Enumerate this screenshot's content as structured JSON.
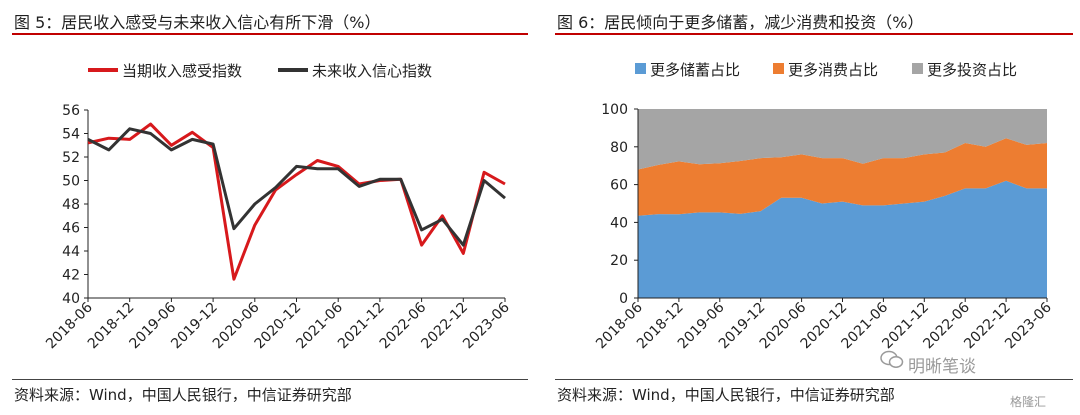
{
  "left_panel": {
    "title": "图 5：居民收入感受与未来收入信心有所下滑（%）",
    "source": "资料来源：Wind，中国人民银行，中信证券研究部"
  },
  "right_panel": {
    "title": "图 6：居民倾向于更多储蓄，减少消费和投资（%）",
    "source": "资料来源：Wind，中国人民银行，中信证券研究部"
  },
  "watermark": {
    "text": "明晰笔谈",
    "corner": "格隆汇"
  },
  "colors": {
    "red": "#d7191c",
    "dark": "#333333",
    "blue": "#5b9bd5",
    "orange": "#ed7d31",
    "gray": "#a5a5a5",
    "accent_rule": "#c00000"
  },
  "chart_data": [
    {
      "type": "line",
      "title": "",
      "x": [
        "2018-06",
        "2018-09",
        "2018-12",
        "2019-03",
        "2019-06",
        "2019-09",
        "2019-12",
        "2020-03",
        "2020-06",
        "2020-09",
        "2020-12",
        "2021-03",
        "2021-06",
        "2021-09",
        "2021-12",
        "2022-03",
        "2022-06",
        "2022-09",
        "2022-12",
        "2023-03",
        "2023-06"
      ],
      "tick_labels": [
        "2018-06",
        "2018-12",
        "2019-06",
        "2019-12",
        "2020-06",
        "2020-12",
        "2021-06",
        "2021-12",
        "2022-06",
        "2022-12",
        "2023-06"
      ],
      "series": [
        {
          "name": "当期收入感受指数",
          "color": "#d7191c",
          "values": [
            53.2,
            53.6,
            53.5,
            54.8,
            53.0,
            54.1,
            52.8,
            41.6,
            46.2,
            49.2,
            50.5,
            51.7,
            51.2,
            49.7,
            50.0,
            50.1,
            44.5,
            47.0,
            43.8,
            50.7,
            49.7
          ]
        },
        {
          "name": "未来收入信心指数",
          "color": "#333333",
          "values": [
            53.5,
            52.6,
            54.4,
            54.0,
            52.6,
            53.5,
            53.1,
            45.9,
            48.0,
            49.4,
            51.2,
            51.0,
            51.0,
            49.5,
            50.1,
            50.1,
            45.8,
            46.7,
            44.5,
            50.0,
            48.5
          ]
        }
      ],
      "ylim": [
        40,
        56
      ],
      "yticks": [
        40,
        42,
        44,
        46,
        48,
        50,
        52,
        54,
        56
      ],
      "legend": "top"
    },
    {
      "type": "area",
      "title": "",
      "stacked": true,
      "x": [
        "2018-06",
        "2018-09",
        "2018-12",
        "2019-03",
        "2019-06",
        "2019-09",
        "2019-12",
        "2020-03",
        "2020-06",
        "2020-09",
        "2020-12",
        "2021-03",
        "2021-06",
        "2021-09",
        "2021-12",
        "2022-03",
        "2022-06",
        "2022-09",
        "2022-12",
        "2023-03",
        "2023-06"
      ],
      "tick_labels": [
        "2018-06",
        "2018-12",
        "2019-06",
        "2019-12",
        "2020-06",
        "2020-12",
        "2021-06",
        "2021-12",
        "2022-06",
        "2022-12",
        "2023-06"
      ],
      "series": [
        {
          "name": "更多储蓄占比",
          "color": "#5b9bd5",
          "values": [
            43.5,
            44.4,
            44.3,
            45.3,
            45.3,
            44.5,
            46.0,
            53.0,
            53.0,
            50.0,
            51.0,
            49.0,
            49.0,
            50.0,
            51.0,
            54.0,
            58.0,
            58.0,
            62.0,
            58.0,
            58.0
          ]
        },
        {
          "name": "更多消费占比",
          "color": "#ed7d31",
          "values": [
            24.5,
            26.0,
            28.0,
            25.5,
            26.0,
            28.0,
            28.0,
            21.5,
            23.0,
            24.0,
            23.0,
            22.0,
            25.0,
            24.0,
            25.0,
            23.0,
            24.0,
            22.0,
            22.5,
            23.0,
            24.0
          ]
        },
        {
          "name": "更多投资占比",
          "color": "#a5a5a5",
          "values": [
            32.0,
            29.6,
            27.7,
            29.2,
            28.7,
            27.5,
            26.0,
            25.5,
            24.0,
            26.0,
            26.0,
            29.0,
            26.0,
            26.0,
            24.0,
            23.0,
            18.0,
            20.0,
            15.5,
            19.0,
            18.0
          ]
        }
      ],
      "ylim": [
        0,
        100
      ],
      "yticks": [
        0,
        20,
        40,
        60,
        80,
        100
      ],
      "legend": "top"
    }
  ]
}
